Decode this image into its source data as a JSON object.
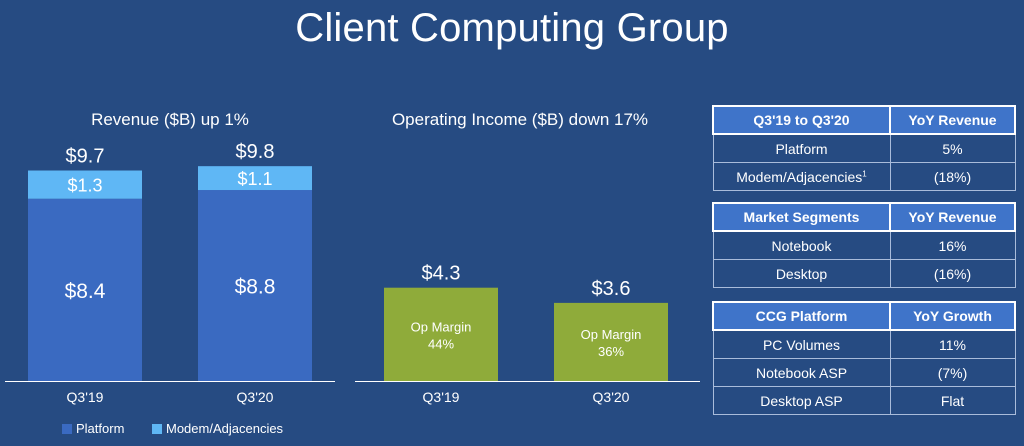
{
  "page": {
    "title": "Client Computing Group"
  },
  "colors": {
    "background": "#264b82",
    "platform": "#3a6ac1",
    "modem": "#5fb7f5",
    "op_income": "#8fab3a",
    "table_header": "#3f74c9"
  },
  "chart_data": [
    {
      "type": "bar",
      "stacked": true,
      "title": "Revenue ($B) up 1%",
      "categories": [
        "Q3'19",
        "Q3'20"
      ],
      "series": [
        {
          "name": "Platform",
          "values": [
            8.4,
            8.8
          ],
          "labels": [
            "$8.4",
            "$8.8"
          ]
        },
        {
          "name": "Modem/Adjacencies",
          "values": [
            1.3,
            1.1
          ],
          "labels": [
            "$1.3",
            "$1.1"
          ]
        }
      ],
      "totals": [
        9.7,
        9.8
      ],
      "total_labels": [
        "$9.7",
        "$9.8"
      ],
      "legend_position": "bottom-left",
      "grid": false
    },
    {
      "type": "bar",
      "title": "Operating Income ($B) down 17%",
      "categories": [
        "Q3'19",
        "Q3'20"
      ],
      "values": [
        4.3,
        3.6
      ],
      "value_labels": [
        "$4.3",
        "$3.6"
      ],
      "inner_label_title": "Op Margin",
      "inner_labels": [
        "44%",
        "36%"
      ],
      "grid": false
    }
  ],
  "tables": [
    {
      "headers": [
        "Q3'19 to Q3'20",
        "YoY Revenue"
      ],
      "rows": [
        {
          "label": "Platform",
          "value": "5%"
        },
        {
          "label": "Modem/Adjacencies",
          "sup": "1",
          "value": "(18%)"
        }
      ]
    },
    {
      "headers": [
        "Market Segments",
        "YoY Revenue"
      ],
      "rows": [
        {
          "label": "Notebook",
          "value": "16%"
        },
        {
          "label": "Desktop",
          "value": "(16%)"
        }
      ]
    },
    {
      "headers": [
        "CCG Platform",
        "YoY Growth"
      ],
      "rows": [
        {
          "label": "PC Volumes",
          "value": "11%"
        },
        {
          "label": "Notebook ASP",
          "value": "(7%)"
        },
        {
          "label": "Desktop ASP",
          "value": "Flat"
        }
      ]
    }
  ]
}
